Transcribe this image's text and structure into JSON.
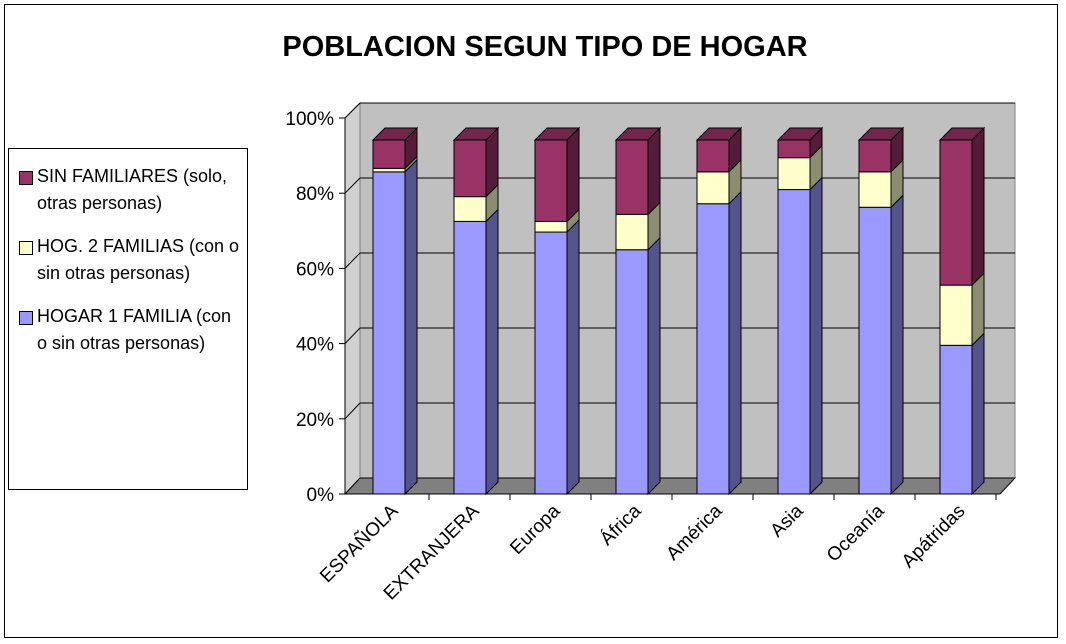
{
  "chart_data": {
    "type": "bar",
    "title": "POBLACION SEGUN TIPO DE HOGAR",
    "stacked": true,
    "categories": [
      "ESPAÑOLA",
      "EXTRANJERA",
      "Europa",
      "África",
      "América",
      "Asia",
      "Oceanía",
      "Apátridas"
    ],
    "series": [
      {
        "name": "HOGAR 1 FAMILIA (con o sin otras personas)",
        "color": "#9999ff",
        "values": [
          91,
          77,
          74,
          69,
          82,
          86,
          81,
          42
        ]
      },
      {
        "name": "HOG. 2 FAMILIAS (con o sin otras personas)",
        "color": "#ffffcc",
        "values": [
          1,
          7,
          3,
          10,
          9,
          9,
          10,
          17
        ]
      },
      {
        "name": "SIN FAMILIARES (solo, otras personas)",
        "color": "#993366",
        "values": [
          8,
          16,
          23,
          21,
          9,
          5,
          9,
          41
        ]
      }
    ],
    "ylim": [
      0,
      100
    ],
    "yticks": [
      {
        "value": 0,
        "label": "0%"
      },
      {
        "value": 20,
        "label": "20%"
      },
      {
        "value": 40,
        "label": "40%"
      },
      {
        "value": 60,
        "label": "60%"
      },
      {
        "value": 80,
        "label": "80%"
      },
      {
        "value": 100,
        "label": "100%"
      }
    ],
    "grid": true
  }
}
